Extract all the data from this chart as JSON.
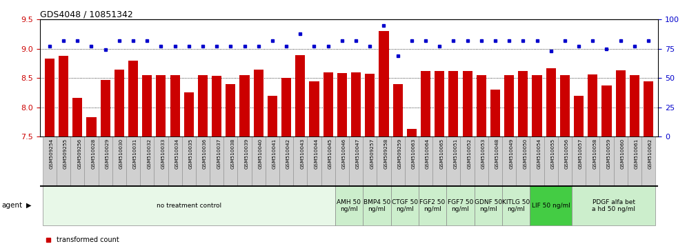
{
  "title": "GDS4048 / 10851342",
  "bar_color": "#CC0000",
  "dot_color": "#0000CC",
  "ylim_left": [
    7.5,
    9.5
  ],
  "ylim_right": [
    0,
    100
  ],
  "yticks_left": [
    7.5,
    8.0,
    8.5,
    9.0,
    9.5
  ],
  "yticks_right": [
    0,
    25,
    50,
    75,
    100
  ],
  "grid_values": [
    8.0,
    8.5,
    9.0
  ],
  "samples": [
    "GSM509254",
    "GSM509255",
    "GSM509256",
    "GSM510028",
    "GSM510029",
    "GSM510030",
    "GSM510031",
    "GSM510032",
    "GSM510033",
    "GSM510034",
    "GSM510035",
    "GSM510036",
    "GSM510037",
    "GSM510038",
    "GSM510039",
    "GSM510040",
    "GSM510041",
    "GSM510042",
    "GSM510043",
    "GSM510044",
    "GSM510045",
    "GSM510046",
    "GSM510047",
    "GSM509257",
    "GSM509258",
    "GSM509259",
    "GSM510063",
    "GSM510064",
    "GSM510065",
    "GSM510051",
    "GSM510052",
    "GSM510053",
    "GSM510048",
    "GSM510049",
    "GSM510050",
    "GSM510054",
    "GSM510055",
    "GSM510056",
    "GSM510057",
    "GSM510058",
    "GSM510059",
    "GSM510060",
    "GSM510061",
    "GSM510062"
  ],
  "bar_values": [
    8.83,
    8.88,
    8.16,
    7.83,
    8.47,
    8.65,
    8.8,
    8.55,
    8.55,
    8.55,
    8.26,
    8.55,
    8.54,
    8.4,
    8.55,
    8.65,
    8.2,
    8.5,
    8.89,
    8.45,
    8.6,
    8.58,
    8.6,
    8.57,
    9.3,
    8.4,
    7.63,
    8.62,
    8.62,
    8.62,
    8.62,
    8.55,
    8.3,
    8.55,
    8.62,
    8.55,
    8.67,
    8.55,
    8.2,
    8.56,
    8.37,
    8.63,
    8.55,
    8.45
  ],
  "dot_values": [
    77,
    82,
    82,
    77,
    74,
    82,
    82,
    82,
    77,
    77,
    77,
    77,
    77,
    77,
    77,
    77,
    82,
    77,
    88,
    77,
    77,
    82,
    82,
    77,
    95,
    69,
    82,
    82,
    77,
    82,
    82,
    82,
    82,
    82,
    82,
    82,
    73,
    82,
    77,
    82,
    75,
    82,
    77,
    82
  ],
  "agent_groups": [
    {
      "label": "no treatment control",
      "start": 0,
      "end": 21,
      "color": "#e8f8e8"
    },
    {
      "label": "AMH 50\nng/ml",
      "start": 21,
      "end": 23,
      "color": "#cceecc"
    },
    {
      "label": "BMP4 50\nng/ml",
      "start": 23,
      "end": 25,
      "color": "#cceecc"
    },
    {
      "label": "CTGF 50\nng/ml",
      "start": 25,
      "end": 27,
      "color": "#cceecc"
    },
    {
      "label": "FGF2 50\nng/ml",
      "start": 27,
      "end": 29,
      "color": "#cceecc"
    },
    {
      "label": "FGF7 50\nng/ml",
      "start": 29,
      "end": 31,
      "color": "#cceecc"
    },
    {
      "label": "GDNF 50\nng/ml",
      "start": 31,
      "end": 33,
      "color": "#cceecc"
    },
    {
      "label": "KITLG 50\nng/ml",
      "start": 33,
      "end": 35,
      "color": "#cceecc"
    },
    {
      "label": "LIF 50 ng/ml",
      "start": 35,
      "end": 38,
      "color": "#44cc44"
    },
    {
      "label": "PDGF alfa bet\na hd 50 ng/ml",
      "start": 38,
      "end": 44,
      "color": "#cceecc"
    }
  ],
  "background_color": "#ffffff",
  "tick_bg_color": "#d0d0d0",
  "tick_border_color": "#888888"
}
